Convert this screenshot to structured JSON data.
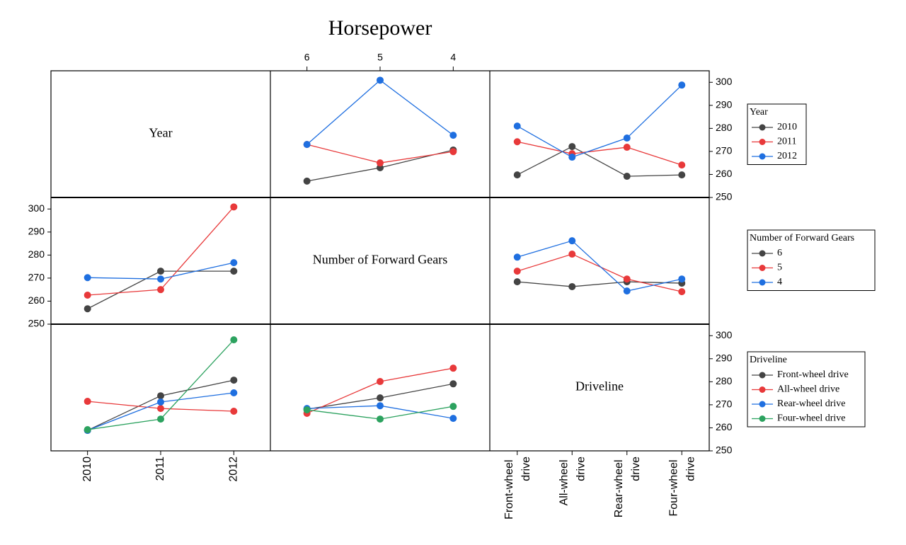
{
  "chart_data": {
    "type": "line",
    "title": "Horsepower",
    "ylim": [
      250,
      305
    ],
    "yticks": [
      250,
      260,
      270,
      280,
      290,
      300
    ],
    "factors": [
      {
        "name": "Year",
        "levels": [
          "2010",
          "2011",
          "2012"
        ],
        "colors": [
          "#444444",
          "#e8393a",
          "#1f6fe0"
        ],
        "panels": [
          {
            "series": [
              [
                257.1,
                262.9,
                270.6
              ],
              [
                273.0,
                265.0,
                269.9
              ],
              [
                273.0,
                300.9,
                277.0
              ]
            ]
          },
          {
            "series": [
              [
                259.8,
                272.1,
                259.2,
                259.8
              ],
              [
                274.2,
                269.0,
                271.8,
                264.1
              ],
              [
                281.0,
                267.5,
                275.8,
                298.8
              ]
            ]
          }
        ]
      },
      {
        "name": "Number of Forward Gears",
        "levels": [
          "6",
          "5",
          "4"
        ],
        "colors": [
          "#444444",
          "#e8393a",
          "#1f6fe0"
        ],
        "panels": [
          {
            "series": [
              [
                256.7,
                273.0,
                273.0
              ],
              [
                262.6,
                265.0,
                300.9
              ],
              [
                270.2,
                269.6,
                276.7
              ]
            ]
          },
          {
            "series": [
              [
                268.4,
                266.3,
                268.4,
                267.8
              ],
              [
                273.0,
                280.4,
                269.6,
                264.1
              ],
              [
                279.1,
                286.2,
                264.4,
                269.6
              ]
            ]
          }
        ]
      },
      {
        "name": "Driveline",
        "levels": [
          "Front-wheel drive",
          "All-wheel drive",
          "Rear-wheel drive",
          "Four-wheel drive"
        ],
        "colors": [
          "#444444",
          "#e8393a",
          "#1f6fe0",
          "#2ca25f"
        ],
        "panels": [
          {
            "series": [
              [
                258.9,
                273.9,
                280.7
              ],
              [
                271.5,
                268.4,
                267.2
              ],
              [
                258.9,
                271.2,
                275.2
              ],
              [
                259.2,
                263.8,
                298.2
              ]
            ]
          },
          {
            "series": [
              [
                268.1,
                273.0,
                279.1
              ],
              [
                266.3,
                280.1,
                285.9
              ],
              [
                268.4,
                269.6,
                264.1
              ],
              [
                267.8,
                263.8,
                269.3
              ]
            ]
          }
        ]
      }
    ]
  }
}
